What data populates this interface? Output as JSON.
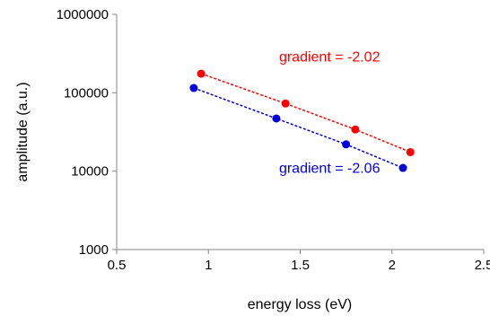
{
  "chart_data": {
    "type": "scatter",
    "title": "",
    "xlabel": "energy loss (eV)",
    "ylabel": "amplitude (a.u.)",
    "xlim": [
      0.5,
      2.5
    ],
    "ylim": [
      1000,
      1000000
    ],
    "yscale": "log",
    "grid": false,
    "legend": "none",
    "x_ticks": [
      0.5,
      1,
      1.5,
      2,
      2.5
    ],
    "x_tick_labels": [
      "0.5",
      "1",
      "1.5",
      "2",
      "2.5"
    ],
    "y_ticks": [
      1000,
      10000,
      100000,
      1000000
    ],
    "y_tick_labels": [
      "1000",
      "10000",
      "100000",
      "1000000"
    ],
    "series": [
      {
        "color": "#ff0000",
        "line_style": "dashed",
        "x": [
          0.96,
          1.42,
          1.8,
          2.1
        ],
        "y": [
          175000,
          73000,
          34000,
          17500
        ]
      },
      {
        "color": "#0000dd",
        "line_style": "dashed",
        "x": [
          0.92,
          1.37,
          1.75,
          2.06
        ],
        "y": [
          115000,
          47000,
          22000,
          11000
        ]
      }
    ],
    "annotations": [
      {
        "text": "gradient = -2.02",
        "color": "#ff0000",
        "x": 1.66,
        "y": 250000
      },
      {
        "text": "gradient = -2.06",
        "color": "#0000dd",
        "x": 1.66,
        "y": 9500
      }
    ]
  }
}
